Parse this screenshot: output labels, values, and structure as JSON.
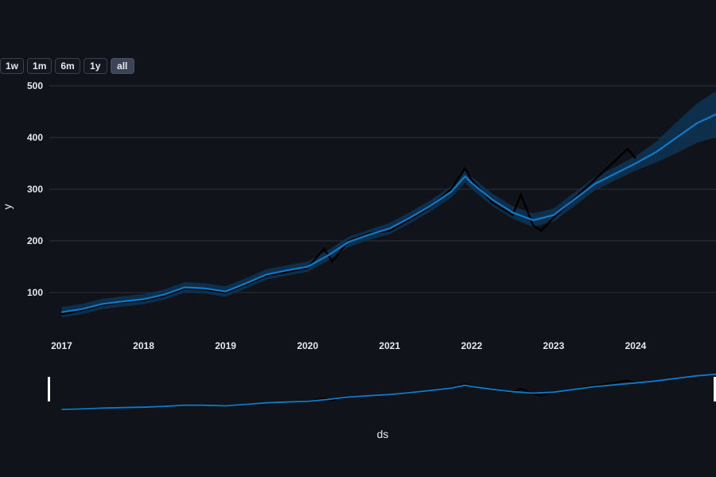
{
  "range_buttons": [
    {
      "label": "1w",
      "active": false
    },
    {
      "label": "1m",
      "active": false
    },
    {
      "label": "6m",
      "active": false
    },
    {
      "label": "1y",
      "active": false
    },
    {
      "label": "all",
      "active": true
    }
  ],
  "colors": {
    "background": "#10131a",
    "gridline": "#2e323c",
    "forecast_line": "#0f7ac8",
    "uncertainty_band": "#0d3352",
    "actual_points": "#000000",
    "slider_handle": "#ffffff"
  },
  "chart_data": {
    "type": "line",
    "xlabel": "ds",
    "ylabel": "y",
    "x_ticks": [
      "2017",
      "2018",
      "2019",
      "2020",
      "2021",
      "2022",
      "2023",
      "2024"
    ],
    "y_ticks": [
      100,
      200,
      300,
      400,
      500
    ],
    "xlim": [
      2016.85,
      2024.98
    ],
    "ylim": [
      20,
      520
    ],
    "grid": true,
    "range_slider": true,
    "series": [
      {
        "type": "band",
        "x": [
          2017.0,
          2017.25,
          2017.5,
          2017.75,
          2018.0,
          2018.25,
          2018.5,
          2018.75,
          2019.0,
          2019.25,
          2019.5,
          2019.75,
          2020.0,
          2020.25,
          2020.5,
          2020.75,
          2021.0,
          2021.25,
          2021.5,
          2021.75,
          2021.92,
          2022.0,
          2022.25,
          2022.5,
          2022.75,
          2023.0,
          2023.25,
          2023.5,
          2023.75,
          2024.0,
          2024.25,
          2024.5,
          2024.75,
          2024.98
        ],
        "y": [
          62,
          68,
          78,
          83,
          87,
          96,
          110,
          108,
          102,
          118,
          135,
          143,
          150,
          172,
          198,
          212,
          224,
          245,
          268,
          295,
          325,
          312,
          280,
          255,
          240,
          250,
          280,
          310,
          330,
          350,
          372,
          400,
          428,
          445
        ],
        "half_width": [
          10,
          10,
          10,
          10,
          10,
          10,
          10,
          10,
          10,
          10,
          10,
          10,
          10,
          10,
          10,
          10,
          11,
          11,
          11,
          11,
          12,
          12,
          12,
          12,
          13,
          13,
          13,
          13,
          13,
          14,
          20,
          30,
          38,
          45
        ]
      },
      {
        "type": "actual",
        "x": [
          2017.0,
          2017.25,
          2017.5,
          2017.75,
          2018.0,
          2018.25,
          2018.5,
          2018.75,
          2019.0,
          2019.25,
          2019.5,
          2019.75,
          2020.0,
          2020.2,
          2020.3,
          2020.5,
          2020.75,
          2021.0,
          2021.25,
          2021.5,
          2021.75,
          2021.92,
          2022.0,
          2022.25,
          2022.5,
          2022.6,
          2022.75,
          2022.85,
          2023.0,
          2023.25,
          2023.5,
          2023.75,
          2023.9,
          2024.0
        ],
        "y": [
          58,
          66,
          76,
          82,
          85,
          94,
          108,
          106,
          100,
          116,
          133,
          140,
          148,
          185,
          160,
          200,
          214,
          220,
          242,
          266,
          300,
          340,
          318,
          275,
          250,
          290,
          230,
          220,
          245,
          282,
          318,
          355,
          378,
          360
        ]
      },
      {
        "type": "forecast",
        "x": [
          2017.0,
          2017.25,
          2017.5,
          2017.75,
          2018.0,
          2018.25,
          2018.5,
          2018.75,
          2019.0,
          2019.25,
          2019.5,
          2019.75,
          2020.0,
          2020.25,
          2020.5,
          2020.75,
          2021.0,
          2021.25,
          2021.5,
          2021.75,
          2021.92,
          2022.0,
          2022.25,
          2022.5,
          2022.75,
          2023.0,
          2023.25,
          2023.5,
          2023.75,
          2024.0,
          2024.25,
          2024.5,
          2024.75,
          2024.98
        ],
        "y": [
          62,
          68,
          78,
          83,
          87,
          96,
          110,
          108,
          102,
          118,
          135,
          143,
          150,
          172,
          198,
          212,
          224,
          245,
          268,
          295,
          325,
          312,
          280,
          255,
          240,
          250,
          280,
          310,
          330,
          350,
          372,
          400,
          428,
          445
        ]
      }
    ]
  }
}
